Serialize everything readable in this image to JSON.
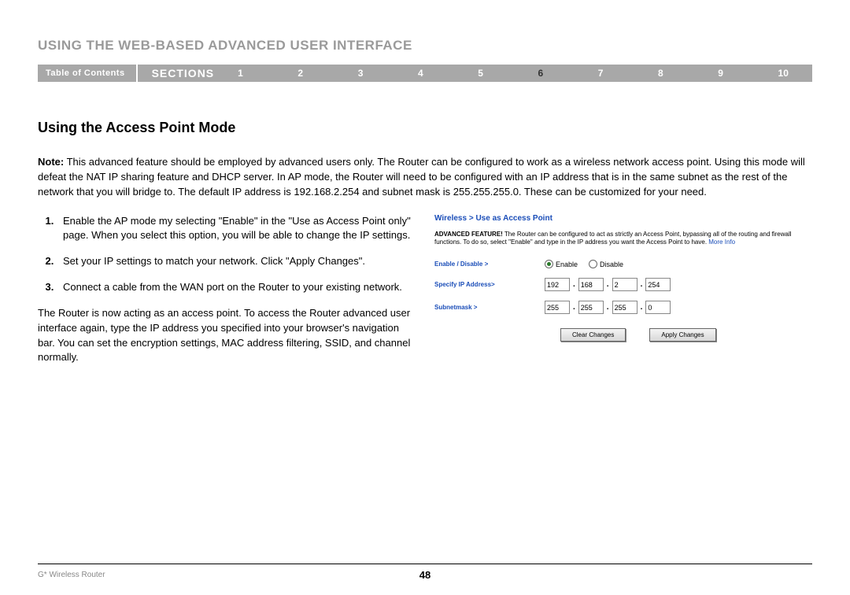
{
  "chapter_title": "USING THE WEB-BASED ADVANCED USER INTERFACE",
  "nav": {
    "toc": "Table of Contents",
    "sections_label": "SECTIONS",
    "numbers": [
      "1",
      "2",
      "3",
      "4",
      "5",
      "6",
      "7",
      "8",
      "9",
      "10"
    ],
    "active_index": 5
  },
  "section_heading": "Using the Access Point Mode",
  "note_label": "Note:",
  "note_body": " This advanced feature should be employed by advanced users only. The Router can be configured to work as a wireless network access point. Using this mode will defeat the NAT IP sharing feature and DHCP server. In AP mode, the Router will need to be configured with an IP address that is in the same subnet as the rest of the network that you will bridge to. The default IP address is 192.168.2.254 and subnet mask is 255.255.255.0. These can be customized for your need.",
  "steps": [
    "Enable the AP mode my selecting \"Enable\" in the \"Use as Access Point only\" page. When you select this option, you will be able to change the IP settings.",
    "Set your IP settings to match your network. Click \"Apply Changes\".",
    "Connect a cable from the WAN port on the Router to your existing network."
  ],
  "followup": "The Router is now acting as an access point. To access the Router advanced user interface again, type the IP address you specified into your browser's navigation bar. You can set the encryption settings, MAC address filtering, SSID, and channel normally.",
  "cfg": {
    "breadcrumb": "Wireless > Use as Access Point",
    "adv_label": "ADVANCED FEATURE!",
    "adv_body": " The Router can be configured to act as strictly an Access Point, bypassing all of the routing and firewall functions. To do so, select \"Enable\" and type in the IP address you want the Access Point to have. ",
    "more_info": "More Info",
    "enable_label": "Enable / Disable >",
    "enable_opt": "Enable",
    "disable_opt": "Disable",
    "ip_label": "Specify IP Address>",
    "ip": [
      "192",
      "168",
      "2",
      "254"
    ],
    "mask_label": "Subnetmask >",
    "mask": [
      "255",
      "255",
      "255",
      "0"
    ],
    "clear_btn": "Clear Changes",
    "apply_btn": "Apply Changes"
  },
  "footer": {
    "product": "G* Wireless Router",
    "page": "48"
  },
  "colors": {
    "nav_bg": "#a8a8a8",
    "link_blue": "#1a4db8",
    "muted_gray": "#9a9a9a"
  }
}
